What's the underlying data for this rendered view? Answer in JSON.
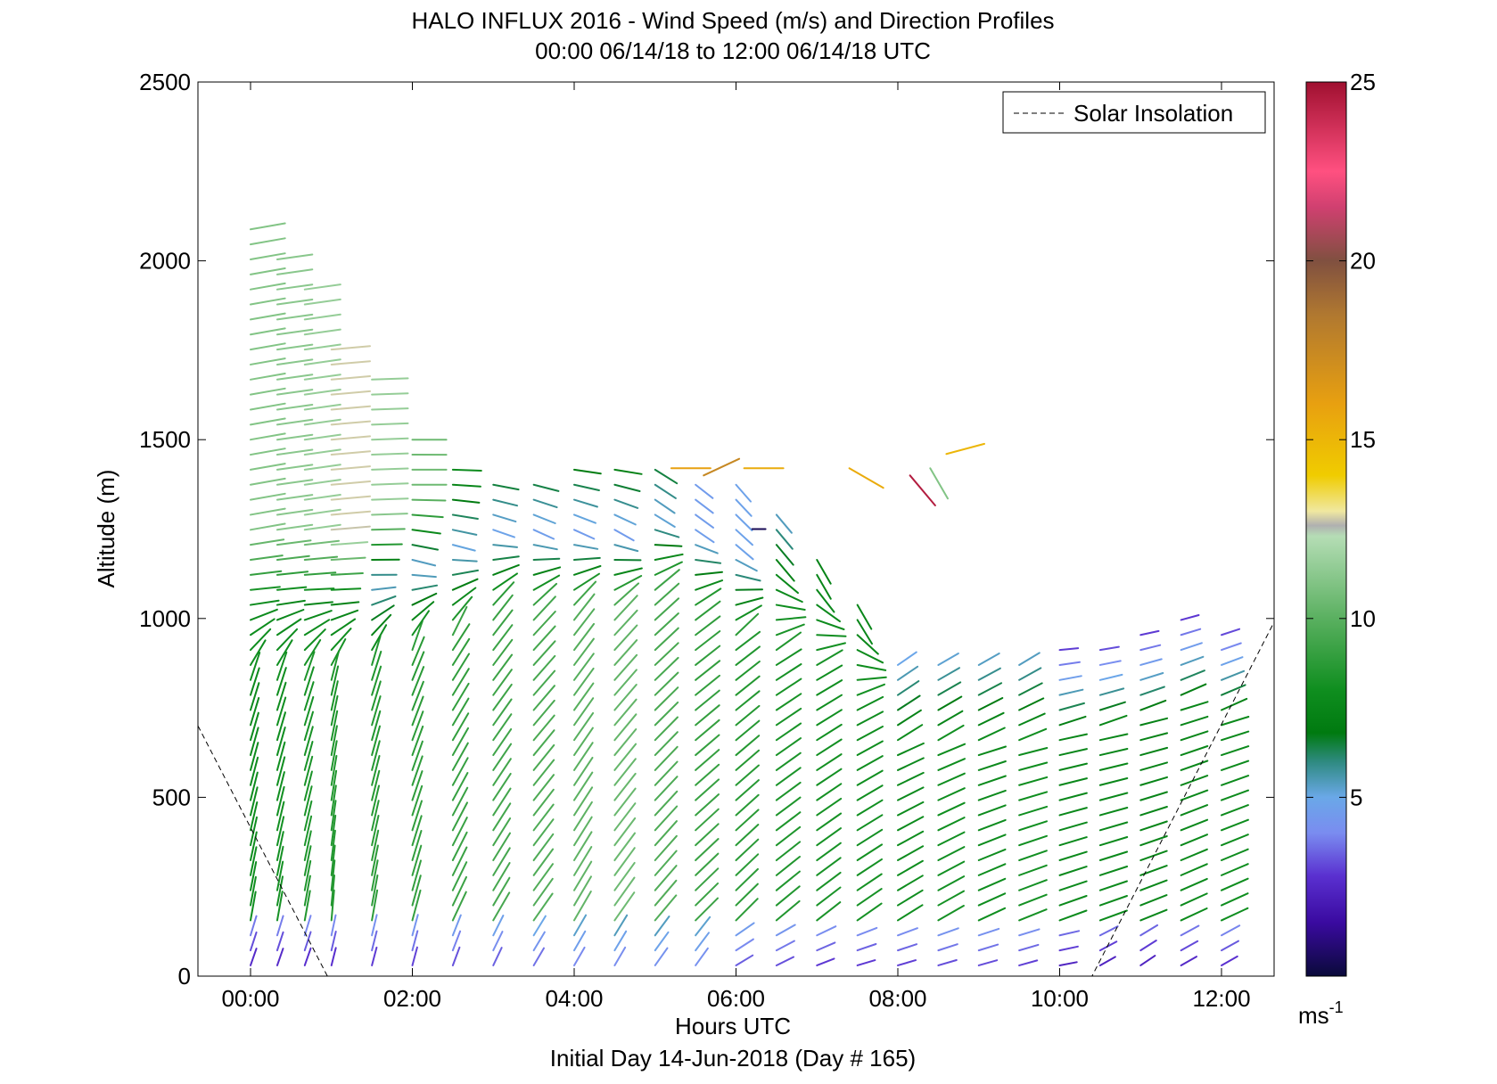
{
  "chart_data": {
    "type": "wind-barb-profile",
    "title": "HALO INFLUX 2016 - Wind Speed (m/s) and Direction Profiles",
    "subtitle": "00:00 06/14/18 to 12:00 06/14/18  UTC",
    "xlabel": "Hours UTC",
    "footer": "Initial Day 14-Jun-2018 (Day # 165)",
    "ylabel": "Altitude (m)",
    "xlim_hours": [
      -0.65,
      12.65
    ],
    "ylim": [
      0,
      2500
    ],
    "x_ticks": [
      {
        "hour": 0,
        "label": "00:00"
      },
      {
        "hour": 2,
        "label": "02:00"
      },
      {
        "hour": 4,
        "label": "04:00"
      },
      {
        "hour": 6,
        "label": "06:00"
      },
      {
        "hour": 8,
        "label": "08:00"
      },
      {
        "hour": 10,
        "label": "10:00"
      },
      {
        "hour": 12,
        "label": "12:00"
      }
    ],
    "y_ticks": [
      0,
      500,
      1000,
      1500,
      2000,
      2500
    ],
    "legend": {
      "label": "Solar Insolation",
      "position": "top-right"
    },
    "colorbar": {
      "unit": "ms",
      "unit_exponent": "-1",
      "range": [
        0,
        25
      ],
      "ticks": [
        5,
        10,
        15,
        20,
        25
      ],
      "stops": [
        {
          "v": 0,
          "c": "#0a0a3a"
        },
        {
          "v": 1.5,
          "c": "#3a0aa0"
        },
        {
          "v": 2.8,
          "c": "#5a30d0"
        },
        {
          "v": 4.0,
          "c": "#7a8cf0"
        },
        {
          "v": 5.0,
          "c": "#6aa8e8"
        },
        {
          "v": 6.0,
          "c": "#2e8a80"
        },
        {
          "v": 6.8,
          "c": "#007a10"
        },
        {
          "v": 8.0,
          "c": "#0f8e1f"
        },
        {
          "v": 10.0,
          "c": "#5ab060"
        },
        {
          "v": 12.3,
          "c": "#b5ddb5"
        },
        {
          "v": 12.6,
          "c": "#b0b0b0"
        },
        {
          "v": 13.0,
          "c": "#f0e8a0"
        },
        {
          "v": 14.0,
          "c": "#f0cc00"
        },
        {
          "v": 16.0,
          "c": "#e8a010"
        },
        {
          "v": 18.5,
          "c": "#b07830"
        },
        {
          "v": 20.0,
          "c": "#805040"
        },
        {
          "v": 21.5,
          "c": "#d04070"
        },
        {
          "v": 22.5,
          "c": "#ff5080"
        },
        {
          "v": 25.0,
          "c": "#a01030"
        }
      ]
    },
    "solar_insolation_line": [
      {
        "hour": -0.65,
        "alt": 700
      },
      {
        "hour": 0.95,
        "alt": 0
      },
      {
        "hour": 10.4,
        "alt": 0
      },
      {
        "hour": 12.65,
        "alt": 990
      }
    ],
    "profiles": [
      {
        "hour": 0.0,
        "top": 2100,
        "cap": 1050,
        "low": {
          "s": 2.2,
          "d": 200
        },
        "mid": {
          "s": 8.0,
          "d": 190
        },
        "up": {
          "s": 7.8,
          "d": 265
        },
        "aloft": {
          "s": 11.0,
          "d": 260
        }
      },
      {
        "hour": 0.33,
        "top": 2040,
        "cap": 1050,
        "low": {
          "s": 2.2,
          "d": 200
        },
        "mid": {
          "s": 8.2,
          "d": 190
        },
        "up": {
          "s": 7.5,
          "d": 265
        },
        "aloft": {
          "s": 11.2,
          "d": 262
        }
      },
      {
        "hour": 0.67,
        "top": 1950,
        "cap": 1050,
        "low": {
          "s": 2.3,
          "d": 200
        },
        "mid": {
          "s": 8.5,
          "d": 190
        },
        "up": {
          "s": 7.5,
          "d": 268
        },
        "aloft": {
          "s": 11.5,
          "d": 262
        }
      },
      {
        "hour": 1.0,
        "top": 1780,
        "cap": 1050,
        "low": {
          "s": 2.3,
          "d": 195
        },
        "mid": {
          "s": 8.6,
          "d": 185
        },
        "up": {
          "s": 7.2,
          "d": 268
        },
        "aloft": {
          "s": 12.8,
          "d": 265
        }
      },
      {
        "hour": 1.5,
        "top": 1700,
        "cap": 1100,
        "low": {
          "s": 2.5,
          "d": 195
        },
        "mid": {
          "s": 8.8,
          "d": 190
        },
        "up": {
          "s": 5.2,
          "d": 270
        },
        "aloft": {
          "s": 11.5,
          "d": 268
        }
      },
      {
        "hour": 2.0,
        "top": 1540,
        "cap": 1150,
        "low": {
          "s": 2.6,
          "d": 195
        },
        "mid": {
          "s": 9.0,
          "d": 195
        },
        "up": {
          "s": 5.0,
          "d": 285
        },
        "aloft": {
          "s": 10.5,
          "d": 270
        }
      },
      {
        "hour": 2.5,
        "top": 1420,
        "cap": 1200,
        "low": {
          "s": 2.8,
          "d": 200
        },
        "mid": {
          "s": 9.2,
          "d": 205
        },
        "up": {
          "s": 5.0,
          "d": 285
        },
        "aloft": {
          "s": 7.8,
          "d": 272
        }
      },
      {
        "hour": 3.0,
        "top": 1390,
        "cap": 1250,
        "low": {
          "s": 3.0,
          "d": 205
        },
        "mid": {
          "s": 9.5,
          "d": 210
        },
        "up": {
          "s": 4.8,
          "d": 290
        },
        "aloft": {
          "s": 7.5,
          "d": 275
        }
      },
      {
        "hour": 3.5,
        "top": 1410,
        "cap": 1250,
        "low": {
          "s": 3.2,
          "d": 210
        },
        "mid": {
          "s": 9.8,
          "d": 215
        },
        "up": {
          "s": 4.6,
          "d": 295
        },
        "aloft": {
          "s": 7.5,
          "d": 278
        }
      },
      {
        "hour": 4.0,
        "top": 1420,
        "cap": 1250,
        "low": {
          "s": 3.5,
          "d": 210
        },
        "mid": {
          "s": 10.2,
          "d": 210
        },
        "up": {
          "s": 4.5,
          "d": 295
        },
        "aloft": {
          "s": 7.5,
          "d": 275
        }
      },
      {
        "hour": 4.5,
        "top": 1420,
        "cap": 1250,
        "low": {
          "s": 3.6,
          "d": 210
        },
        "mid": {
          "s": 10.5,
          "d": 215
        },
        "up": {
          "s": 4.5,
          "d": 300
        },
        "aloft": {
          "s": 7.8,
          "d": 275
        }
      },
      {
        "hour": 5.0,
        "top": 1420,
        "cap": 1300,
        "low": {
          "s": 3.8,
          "d": 215
        },
        "mid": {
          "s": 9.8,
          "d": 220
        },
        "up": {
          "s": 5.0,
          "d": 305
        },
        "aloft": {
          "s": 7.5,
          "d": 300
        }
      },
      {
        "hour": 5.5,
        "top": 1400,
        "cap": 1250,
        "low": {
          "s": 3.8,
          "d": 215
        },
        "mid": {
          "s": 9.2,
          "d": 225
        },
        "up": {
          "s": 4.6,
          "d": 305
        },
        "aloft": {
          "s": 4.5,
          "d": 310
        }
      },
      {
        "hour": 6.0,
        "top": 1380,
        "cap": 1200,
        "low": {
          "s": 3.0,
          "d": 240
        },
        "mid": {
          "s": 8.8,
          "d": 225
        },
        "up": {
          "s": 4.8,
          "d": 310
        },
        "aloft": {
          "s": 4.8,
          "d": 320
        }
      },
      {
        "hour": 6.5,
        "top": 1300,
        "cap": 1150,
        "low": {
          "s": 2.8,
          "d": 245
        },
        "mid": {
          "s": 8.5,
          "d": 230
        },
        "up": {
          "s": 7.5,
          "d": 320
        },
        "aloft": {
          "s": 4.5,
          "d": 320
        }
      },
      {
        "hour": 7.0,
        "top": 1200,
        "cap": 1100,
        "low": {
          "s": 2.5,
          "d": 250
        },
        "mid": {
          "s": 8.3,
          "d": 232
        },
        "up": {
          "s": 7.5,
          "d": 330
        },
        "aloft": {
          "s": 7.0,
          "d": 330
        }
      },
      {
        "hour": 7.5,
        "top": 1050,
        "cap": 1000,
        "low": {
          "s": 2.5,
          "d": 255
        },
        "mid": {
          "s": 8.2,
          "d": 235
        },
        "up": {
          "s": 7.5,
          "d": 330
        },
        "aloft": {
          "s": 7.5,
          "d": 330
        }
      },
      {
        "hour": 8.0,
        "top": 900,
        "cap": 900,
        "low": {
          "s": 2.6,
          "d": 255
        },
        "mid": {
          "s": 8.0,
          "d": 238
        },
        "up": {
          "s": 4.5,
          "d": 235
        },
        "aloft": {
          "s": 4.5,
          "d": 235
        }
      },
      {
        "hour": 8.5,
        "top": 900,
        "cap": 900,
        "low": {
          "s": 2.8,
          "d": 255
        },
        "mid": {
          "s": 8.2,
          "d": 240
        },
        "up": {
          "s": 4.8,
          "d": 240
        },
        "aloft": {
          "s": 4.8,
          "d": 240
        }
      },
      {
        "hour": 9.0,
        "top": 900,
        "cap": 900,
        "low": {
          "s": 2.8,
          "d": 255
        },
        "mid": {
          "s": 8.0,
          "d": 245
        },
        "up": {
          "s": 5.0,
          "d": 240
        },
        "aloft": {
          "s": 5.0,
          "d": 240
        }
      },
      {
        "hour": 9.5,
        "top": 900,
        "cap": 900,
        "low": {
          "s": 2.6,
          "d": 255
        },
        "mid": {
          "s": 8.2,
          "d": 248
        },
        "up": {
          "s": 5.0,
          "d": 238
        },
        "aloft": {
          "s": 5.0,
          "d": 238
        }
      },
      {
        "hour": 10.0,
        "top": 920,
        "cap": 920,
        "low": {
          "s": 2.0,
          "d": 260
        },
        "mid": {
          "s": 7.8,
          "d": 250
        },
        "up": {
          "s": 2.8,
          "d": 265
        },
        "aloft": {
          "s": 7.5,
          "d": 230
        }
      },
      {
        "hour": 10.5,
        "top": 940,
        "cap": 940,
        "low": {
          "s": 2.0,
          "d": 240
        },
        "mid": {
          "s": 7.8,
          "d": 250
        },
        "up": {
          "s": 2.6,
          "d": 262
        },
        "aloft": {
          "s": 7.8,
          "d": 228
        }
      },
      {
        "hour": 11.0,
        "top": 960,
        "cap": 960,
        "low": {
          "s": 2.0,
          "d": 235
        },
        "mid": {
          "s": 7.6,
          "d": 248
        },
        "up": {
          "s": 2.8,
          "d": 258
        },
        "aloft": {
          "s": 7.8,
          "d": 225
        }
      },
      {
        "hour": 11.5,
        "top": 1000,
        "cap": 1000,
        "low": {
          "s": 2.2,
          "d": 240
        },
        "mid": {
          "s": 7.8,
          "d": 245
        },
        "up": {
          "s": 2.8,
          "d": 255
        },
        "aloft": {
          "s": 8.0,
          "d": 225
        }
      },
      {
        "hour": 12.0,
        "top": 960,
        "cap": 960,
        "low": {
          "s": 2.4,
          "d": 240
        },
        "mid": {
          "s": 8.0,
          "d": 245
        },
        "up": {
          "s": 3.0,
          "d": 252
        },
        "aloft": {
          "s": 8.2,
          "d": 225
        }
      }
    ],
    "isolated_barbs": [
      {
        "hour": 5.2,
        "alt": 1420,
        "s": 16.0,
        "d": 270
      },
      {
        "hour": 5.6,
        "alt": 1400,
        "s": 17.5,
        "d": 245
      },
      {
        "hour": 6.1,
        "alt": 1420,
        "s": 15.5,
        "d": 270
      },
      {
        "hour": 6.2,
        "alt": 1250,
        "s": 0.4,
        "d": 270
      },
      {
        "hour": 7.4,
        "alt": 1420,
        "s": 15.5,
        "d": 300
      },
      {
        "hour": 8.15,
        "alt": 1400,
        "s": 24.5,
        "d": 320
      },
      {
        "hour": 8.6,
        "alt": 1460,
        "s": 15.0,
        "d": 255
      },
      {
        "hour": 8.4,
        "alt": 1420,
        "s": 11.0,
        "d": 330
      }
    ]
  }
}
